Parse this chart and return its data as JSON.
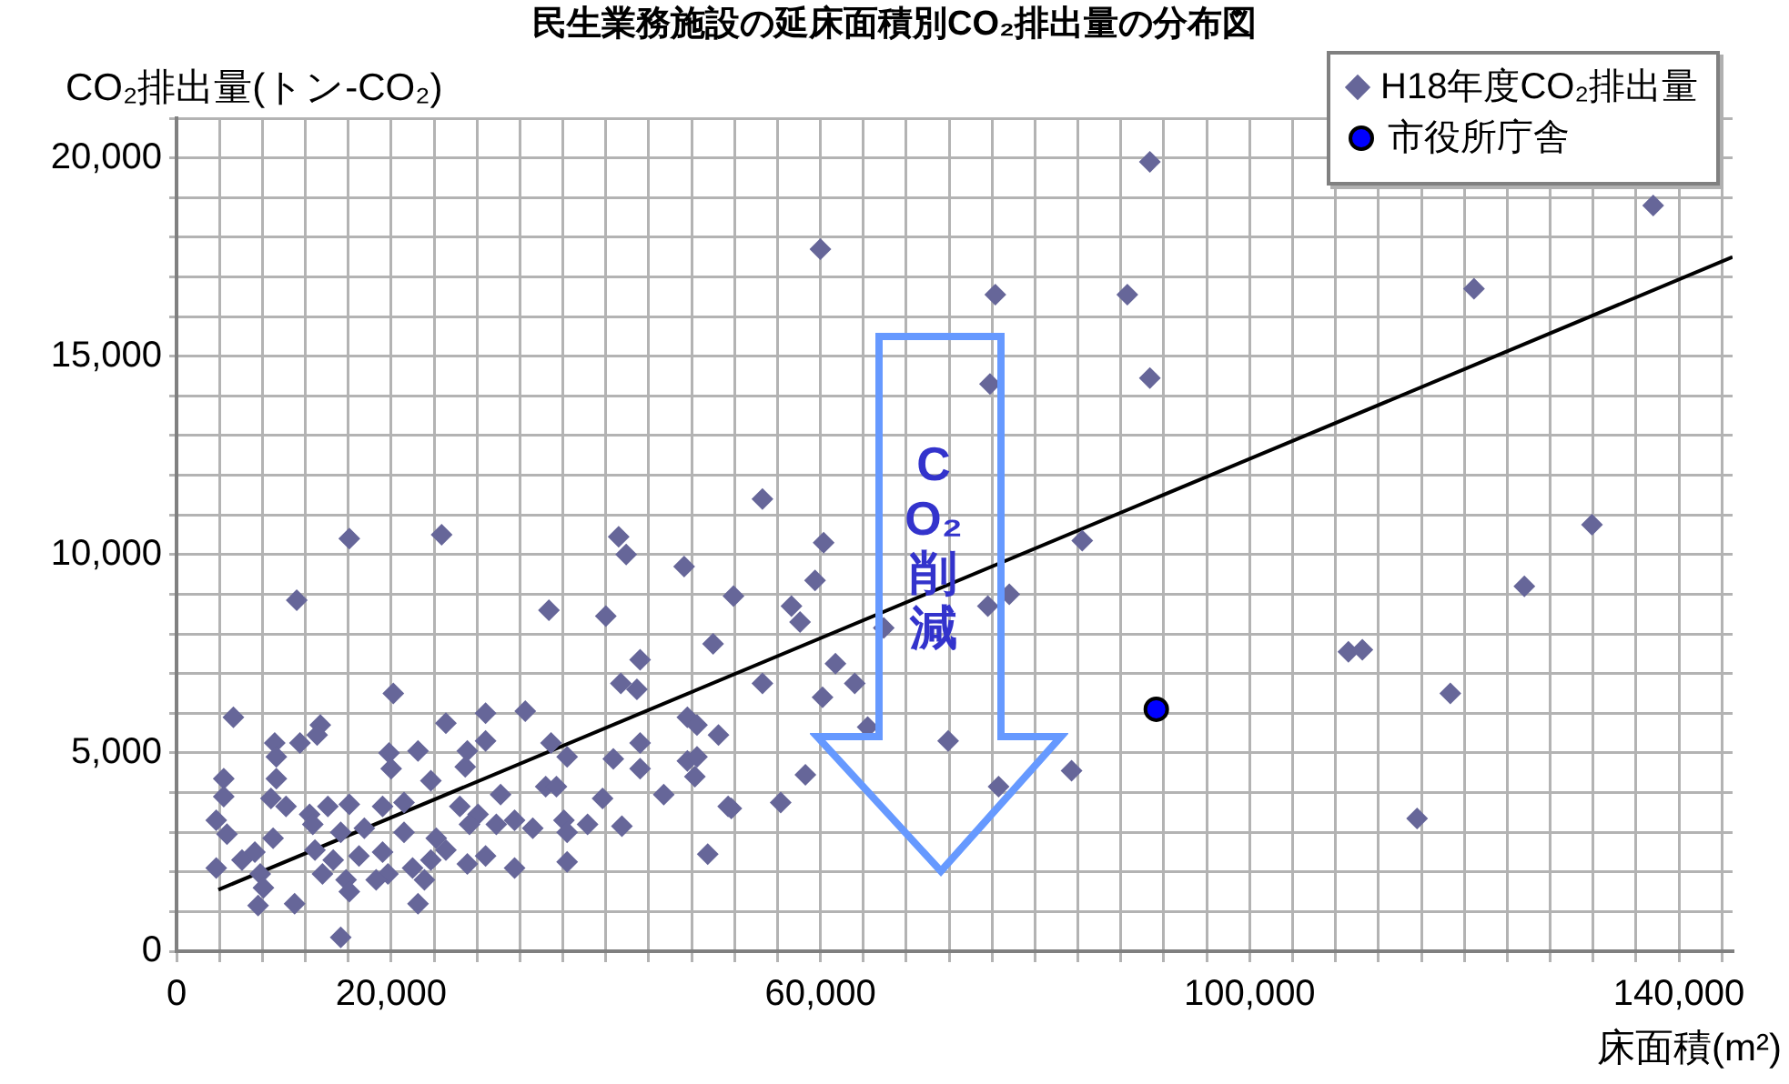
{
  "chart_data": {
    "type": "scatter",
    "title": "民生業務施設の延床面積別CO₂排出量の分布図",
    "ylabel": "CO₂排出量(トン-CO₂)",
    "xlabel": "床面積(m²)",
    "annotations": [
      "CO₂削減"
    ],
    "xlim": [
      0,
      145000
    ],
    "ylim": [
      0,
      21000
    ],
    "xticks": [
      {
        "value": 0,
        "label": "0"
      },
      {
        "value": 4000,
        "label": null
      },
      {
        "value": 8000,
        "label": null
      },
      {
        "value": 12000,
        "label": null
      },
      {
        "value": 16000,
        "label": null
      },
      {
        "value": 20000,
        "label": "20,000"
      },
      {
        "value": 24000,
        "label": null
      },
      {
        "value": 28000,
        "label": null
      },
      {
        "value": 32000,
        "label": null
      },
      {
        "value": 36000,
        "label": null
      },
      {
        "value": 40000,
        "label": null
      },
      {
        "value": 44000,
        "label": null
      },
      {
        "value": 48000,
        "label": null
      },
      {
        "value": 52000,
        "label": null
      },
      {
        "value": 56000,
        "label": null
      },
      {
        "value": 60000,
        "label": "60,000"
      },
      {
        "value": 64000,
        "label": null
      },
      {
        "value": 68000,
        "label": null
      },
      {
        "value": 72000,
        "label": null
      },
      {
        "value": 76000,
        "label": null
      },
      {
        "value": 80000,
        "label": null
      },
      {
        "value": 84000,
        "label": null
      },
      {
        "value": 88000,
        "label": null
      },
      {
        "value": 92000,
        "label": null
      },
      {
        "value": 96000,
        "label": null
      },
      {
        "value": 100000,
        "label": "100,000"
      },
      {
        "value": 104000,
        "label": null
      },
      {
        "value": 108000,
        "label": null
      },
      {
        "value": 112000,
        "label": null
      },
      {
        "value": 116000,
        "label": null
      },
      {
        "value": 120000,
        "label": null
      },
      {
        "value": 124000,
        "label": null
      },
      {
        "value": 128000,
        "label": null
      },
      {
        "value": 132000,
        "label": null
      },
      {
        "value": 136000,
        "label": null
      },
      {
        "value": 140000,
        "label": "140,000"
      },
      {
        "value": 144000,
        "label": null
      }
    ],
    "yticks": [
      {
        "value": 0,
        "label": "0"
      },
      {
        "value": 1000,
        "label": null
      },
      {
        "value": 2000,
        "label": null
      },
      {
        "value": 3000,
        "label": null
      },
      {
        "value": 4000,
        "label": null
      },
      {
        "value": 5000,
        "label": "5,000"
      },
      {
        "value": 6000,
        "label": null
      },
      {
        "value": 7000,
        "label": null
      },
      {
        "value": 8000,
        "label": null
      },
      {
        "value": 9000,
        "label": null
      },
      {
        "value": 10000,
        "label": "10,000"
      },
      {
        "value": 11000,
        "label": null
      },
      {
        "value": 12000,
        "label": null
      },
      {
        "value": 13000,
        "label": null
      },
      {
        "value": 14000,
        "label": null
      },
      {
        "value": 15000,
        "label": "15,000"
      },
      {
        "value": 16000,
        "label": null
      },
      {
        "value": 17000,
        "label": null
      },
      {
        "value": 18000,
        "label": null
      },
      {
        "value": 19000,
        "label": null
      },
      {
        "value": 20000,
        "label": "20,000"
      },
      {
        "value": 21000,
        "label": null
      }
    ],
    "grid": true,
    "legend": "top right",
    "series": [
      {
        "name": "H18年度CO₂排出量",
        "marker": "diamond",
        "color": "#666699",
        "x": [
          54600,
          16100,
          24700,
          41200,
          41900,
          60300,
          47300,
          59500,
          11200,
          34700,
          40000,
          51900,
          57300,
          58100,
          50000,
          43200,
          61400,
          41400,
          42900,
          54600,
          60200,
          20200,
          5300,
          13400,
          13100,
          11500,
          9150,
          9300,
          25100,
          28800,
          32500,
          19800,
          22500,
          27100,
          28800,
          34900,
          36400,
          40700,
          43200,
          47600,
          48500,
          50500,
          47600,
          48500,
          48300,
          43200,
          58600,
          4400,
          9300,
          20000,
          26900,
          23700,
          4400,
          30200,
          34400,
          35400,
          39700,
          45400,
          51400,
          56300,
          3700,
          4700,
          8800,
          10200,
          12400,
          14100,
          16100,
          19200,
          21200,
          12700,
          15300,
          17500,
          9000,
          26400,
          28100,
          27300,
          29800,
          31500,
          33200,
          36100,
          38300,
          41500,
          36400,
          21200,
          24200,
          6100,
          7300,
          3700,
          12900,
          14600,
          17000,
          19200,
          13600,
          15800,
          19700,
          22000,
          23700,
          25100,
          27100,
          28800,
          18600,
          23100,
          31500,
          36400,
          49500,
          7800,
          8100,
          7600,
          11000,
          16100,
          22500,
          15300,
          90700,
          60000,
          76300,
          88600,
          137600,
          120900,
          90700,
          75800,
          84400,
          131900,
          125600,
          65900,
          77600,
          75600,
          63200,
          64400,
          71900,
          76600,
          83400,
          109200,
          110500,
          118700,
          115600,
          51700
        ],
        "values": [
          11400,
          10400,
          10500,
          10450,
          10000,
          10300,
          9700,
          9350,
          8850,
          8600,
          8450,
          8950,
          8700,
          8300,
          7750,
          7350,
          7250,
          6750,
          6600,
          6750,
          6400,
          6500,
          5900,
          5700,
          5450,
          5250,
          5250,
          4900,
          5750,
          6000,
          6050,
          5000,
          5050,
          5050,
          5300,
          5250,
          4900,
          4850,
          5250,
          5900,
          5700,
          5450,
          4800,
          4900,
          4400,
          4600,
          4450,
          4350,
          4350,
          4600,
          4650,
          4300,
          3900,
          3950,
          4150,
          4150,
          3850,
          3950,
          3650,
          3750,
          3300,
          2950,
          3850,
          3650,
          3450,
          3650,
          3700,
          3650,
          3750,
          3200,
          3000,
          3100,
          2850,
          3650,
          3450,
          3200,
          3200,
          3300,
          3100,
          3300,
          3200,
          3150,
          3000,
          3000,
          2850,
          2300,
          2500,
          2100,
          2550,
          2300,
          2400,
          2500,
          1950,
          1800,
          1950,
          2100,
          2300,
          2550,
          2200,
          2400,
          1800,
          1800,
          2100,
          2250,
          2450,
          1950,
          1600,
          1150,
          1200,
          1500,
          1200,
          350,
          19900,
          17700,
          16550,
          16550,
          18800,
          16700,
          14450,
          14300,
          10350,
          10750,
          9200,
          8150,
          9000,
          8700,
          6750,
          5650,
          5300,
          4150,
          4550,
          7550,
          7600,
          6500,
          3350,
          3600
        ]
      },
      {
        "name": "市役所庁舎",
        "marker": "circle",
        "color": "#0000ff",
        "x": [
          91300
        ],
        "values": [
          6100
        ]
      },
      {
        "type": "line",
        "marker": "none",
        "line_style": "solid",
        "color": "#000000",
        "x": [
          3900,
          145000
        ],
        "values": [
          1550,
          17500
        ]
      }
    ]
  }
}
